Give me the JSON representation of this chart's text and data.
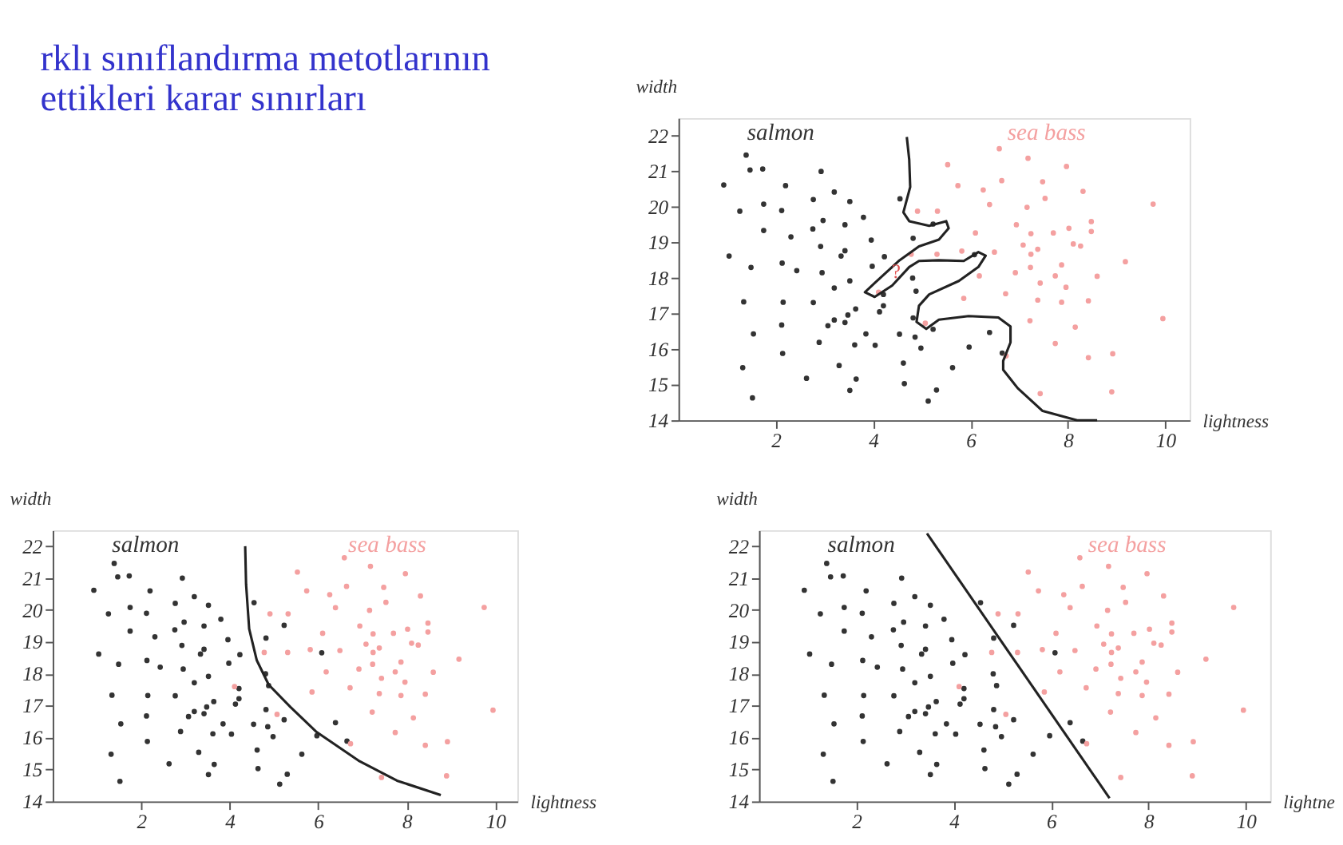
{
  "chart_data": [
    {
      "type": "other",
      "title": "rklı sınıflandırma metotlarının\nettikleri karar sınırları"
    },
    {
      "type": "scatter",
      "xlabel": "lightness",
      "ylabel": "width",
      "xlim": [
        0,
        10.5
      ],
      "ylim": [
        14,
        22.5
      ],
      "xticks": [
        2,
        4,
        6,
        8,
        10
      ],
      "yticks": [
        14,
        15,
        16,
        17,
        18,
        19,
        20,
        21,
        22
      ],
      "marker": "circle",
      "annotations": [
        {
          "text": "?",
          "x": 4.47,
          "y": 18.18
        }
      ],
      "series": [
        {
          "name": "salmon",
          "color": "#333333",
          "x": [
            0.93,
            1.39,
            1.47,
            1.73,
            1.26,
            1.75,
            1.75,
            1.04,
            1.49,
            1.34,
            1.54,
            1.32,
            1.52,
            2.2,
            2.12,
            2.31,
            2.13,
            2.43,
            2.15,
            2.12,
            2.14,
            2.93,
            2.77,
            2.97,
            2.76,
            2.92,
            2.95,
            2.77,
            2.89,
            2.63,
            3.2,
            3.52,
            3.42,
            3.42,
            3.34,
            3.2,
            3.52,
            3.07,
            3.2,
            3.48,
            3.42,
            3.64,
            3.62,
            3.3,
            3.65,
            3.52,
            3.8,
            3.96,
            3.98,
            4.23,
            4.21,
            4.21,
            4.13,
            3.85,
            4.04,
            4.55,
            4.82,
            4.81,
            4.88,
            4.82,
            4.86,
            4.54,
            4.98,
            4.62,
            4.64,
            5.23,
            5.23,
            5.3,
            5.13,
            5.63,
            5.97,
            6.08,
            6.39,
            6.65
          ],
          "values": [
            20.62,
            21.46,
            21.04,
            21.07,
            19.88,
            20.08,
            19.34,
            18.62,
            18.3,
            17.33,
            16.43,
            15.48,
            14.63,
            20.6,
            19.9,
            19.16,
            18.42,
            18.21,
            17.32,
            16.68,
            15.88,
            21.0,
            20.21,
            19.62,
            19.38,
            18.89,
            18.15,
            17.31,
            16.19,
            15.18,
            20.42,
            20.15,
            19.5,
            18.77,
            18.62,
            17.72,
            17.92,
            16.66,
            16.82,
            16.96,
            16.75,
            17.13,
            16.12,
            15.54,
            15.16,
            14.84,
            19.71,
            19.07,
            18.33,
            18.6,
            17.54,
            17.22,
            17.05,
            16.43,
            16.11,
            20.23,
            19.12,
            18.0,
            17.63,
            16.88,
            16.34,
            16.42,
            16.03,
            15.61,
            15.03,
            19.52,
            16.56,
            14.85,
            14.54,
            15.48,
            16.06,
            18.66,
            16.47,
            15.89
          ]
        },
        {
          "name": "sea bass",
          "color": "#f4a0a0",
          "x": [
            6.59,
            5.53,
            7.18,
            7.97,
            5.74,
            6.26,
            6.64,
            7.48,
            8.31,
            7.53,
            6.39,
            4.91,
            5.32,
            7.16,
            9.75,
            6.94,
            8.02,
            8.48,
            8.48,
            7.24,
            7.7,
            6.1,
            7.08,
            7.38,
            8.11,
            8.26,
            7.24,
            6.49,
            5.82,
            4.78,
            5.31,
            7.87,
            7.23,
            9.18,
            6.92,
            8.6,
            6.18,
            7.74,
            7.43,
            7.96,
            6.72,
            5.86,
            7.38,
            8.42,
            7.87,
            4.11,
            7.22,
            8.15,
            9.95,
            5.07,
            6.73,
            7.74,
            8.42,
            8.92,
            7.43,
            8.9
          ],
          "values": [
            21.64,
            21.19,
            21.37,
            21.14,
            20.6,
            20.48,
            20.74,
            20.71,
            20.44,
            20.24,
            20.07,
            19.88,
            19.88,
            19.99,
            20.08,
            19.5,
            19.4,
            19.59,
            19.31,
            19.25,
            19.27,
            19.27,
            18.93,
            18.81,
            18.96,
            18.9,
            18.67,
            18.73,
            18.76,
            18.67,
            18.67,
            18.37,
            18.3,
            18.46,
            18.15,
            18.05,
            18.06,
            18.06,
            17.86,
            17.74,
            17.56,
            17.43,
            17.38,
            17.36,
            17.32,
            17.6,
            16.8,
            16.62,
            16.86,
            16.73,
            15.81,
            16.16,
            15.76,
            15.87,
            14.75,
            14.8
          ]
        },
        {
          "type": "line",
          "color": "#222222",
          "marker": "none",
          "x": [
            4.69,
            4.74,
            4.76,
            4.62,
            4.74,
            5.15,
            5.5,
            5.55,
            5.35,
            4.94,
            4.54,
            4.03,
            3.83,
            4.03,
            4.39,
            4.74,
            4.94,
            5.35,
            5.86,
            6.16,
            6.31,
            6.16,
            5.76,
            5.15,
            4.94,
            4.89,
            5.09,
            5.35,
            5.96,
            6.57,
            6.82,
            6.82,
            6.67,
            6.67,
            6.97,
            7.48,
            8.19,
            8.6
          ],
          "values": [
            21.97,
            21.33,
            20.56,
            19.85,
            19.6,
            19.47,
            19.6,
            19.4,
            19.08,
            18.89,
            18.5,
            17.86,
            17.6,
            17.47,
            17.79,
            18.31,
            18.48,
            18.5,
            18.48,
            18.73,
            18.63,
            18.31,
            17.92,
            17.54,
            17.22,
            16.77,
            16.57,
            16.83,
            16.93,
            16.89,
            16.64,
            16.19,
            15.67,
            15.42,
            14.9,
            14.26,
            14.0,
            14.0
          ]
        }
      ]
    },
    {
      "type": "scatter",
      "xlabel": "lightness",
      "ylabel": "width",
      "xlim": [
        0,
        10.5
      ],
      "ylim": [
        14,
        22.5
      ],
      "xticks": [
        2,
        4,
        6,
        8,
        10
      ],
      "yticks": [
        14,
        15,
        16,
        17,
        18,
        19,
        20,
        21,
        22
      ],
      "marker": "circle",
      "series": [
        {
          "name": "salmon",
          "color": "#333333",
          "x": [
            0.93,
            1.39,
            1.47,
            1.73,
            1.26,
            1.75,
            1.75,
            1.04,
            1.49,
            1.34,
            1.54,
            1.32,
            1.52,
            2.2,
            2.12,
            2.31,
            2.13,
            2.43,
            2.15,
            2.12,
            2.14,
            2.93,
            2.77,
            2.97,
            2.76,
            2.92,
            2.95,
            2.77,
            2.89,
            2.63,
            3.2,
            3.52,
            3.42,
            3.42,
            3.34,
            3.2,
            3.52,
            3.07,
            3.2,
            3.48,
            3.42,
            3.64,
            3.62,
            3.3,
            3.65,
            3.52,
            3.8,
            3.96,
            3.98,
            4.23,
            4.21,
            4.21,
            4.13,
            3.85,
            4.04,
            4.55,
            4.82,
            4.81,
            4.88,
            4.82,
            4.86,
            4.54,
            4.98,
            4.62,
            4.64,
            5.23,
            5.23,
            5.3,
            5.13,
            5.63,
            5.97,
            6.08,
            6.39,
            6.65
          ],
          "values": [
            20.62,
            21.46,
            21.04,
            21.07,
            19.88,
            20.08,
            19.34,
            18.62,
            18.3,
            17.33,
            16.43,
            15.48,
            14.63,
            20.6,
            19.9,
            19.16,
            18.42,
            18.21,
            17.32,
            16.68,
            15.88,
            21.0,
            20.21,
            19.62,
            19.38,
            18.89,
            18.15,
            17.31,
            16.19,
            15.18,
            20.42,
            20.15,
            19.5,
            18.77,
            18.62,
            17.72,
            17.92,
            16.66,
            16.82,
            16.96,
            16.75,
            17.13,
            16.12,
            15.54,
            15.16,
            14.84,
            19.71,
            19.07,
            18.33,
            18.6,
            17.54,
            17.22,
            17.05,
            16.43,
            16.11,
            20.23,
            19.12,
            18.0,
            17.63,
            16.88,
            16.34,
            16.42,
            16.03,
            15.61,
            15.03,
            19.52,
            16.56,
            14.85,
            14.54,
            15.48,
            16.06,
            18.66,
            16.47,
            15.89
          ]
        },
        {
          "name": "sea bass",
          "color": "#f4a0a0",
          "x": [
            6.59,
            5.53,
            7.18,
            7.97,
            5.74,
            6.26,
            6.64,
            7.48,
            8.31,
            7.53,
            6.39,
            4.91,
            5.32,
            7.16,
            9.75,
            6.94,
            8.02,
            8.48,
            8.48,
            7.24,
            7.7,
            6.1,
            7.08,
            7.38,
            8.11,
            8.26,
            7.24,
            6.49,
            5.82,
            4.78,
            5.31,
            7.87,
            7.23,
            9.18,
            6.92,
            8.6,
            6.18,
            7.74,
            7.43,
            7.96,
            6.72,
            5.86,
            7.38,
            8.42,
            7.87,
            4.11,
            7.22,
            8.15,
            9.95,
            5.07,
            6.73,
            7.74,
            8.42,
            8.92,
            7.43,
            8.9
          ],
          "values": [
            21.64,
            21.19,
            21.37,
            21.14,
            20.6,
            20.48,
            20.74,
            20.71,
            20.44,
            20.24,
            20.07,
            19.88,
            19.88,
            19.99,
            20.08,
            19.5,
            19.4,
            19.59,
            19.31,
            19.25,
            19.27,
            19.27,
            18.93,
            18.81,
            18.96,
            18.9,
            18.67,
            18.73,
            18.76,
            18.67,
            18.67,
            18.37,
            18.3,
            18.46,
            18.15,
            18.05,
            18.06,
            18.06,
            17.86,
            17.74,
            17.56,
            17.43,
            17.38,
            17.36,
            17.32,
            17.6,
            16.8,
            16.62,
            16.86,
            16.73,
            15.81,
            16.16,
            15.76,
            15.87,
            14.75,
            14.8
          ]
        },
        {
          "type": "line",
          "color": "#222222",
          "marker": "none",
          "x": [
            4.35,
            4.37,
            4.44,
            4.61,
            4.88,
            5.37,
            5.95,
            6.91,
            7.78,
            8.77
          ],
          "values": [
            22.0,
            20.81,
            19.41,
            18.43,
            17.66,
            16.96,
            16.19,
            15.28,
            14.65,
            14.2
          ]
        }
      ]
    },
    {
      "type": "scatter",
      "xlabel": "lightne",
      "ylabel": "width",
      "xlim": [
        0,
        10.5
      ],
      "ylim": [
        14,
        22.5
      ],
      "xticks": [
        2,
        4,
        6,
        8,
        10
      ],
      "yticks": [
        14,
        15,
        16,
        17,
        18,
        19,
        20,
        21,
        22
      ],
      "marker": "circle",
      "series": [
        {
          "name": "salmon",
          "color": "#333333",
          "x": [
            0.93,
            1.39,
            1.47,
            1.73,
            1.26,
            1.75,
            1.75,
            1.04,
            1.49,
            1.34,
            1.54,
            1.32,
            1.52,
            2.2,
            2.12,
            2.31,
            2.13,
            2.43,
            2.15,
            2.12,
            2.14,
            2.93,
            2.77,
            2.97,
            2.76,
            2.92,
            2.95,
            2.77,
            2.89,
            2.63,
            3.2,
            3.52,
            3.42,
            3.42,
            3.34,
            3.2,
            3.52,
            3.07,
            3.2,
            3.48,
            3.42,
            3.64,
            3.62,
            3.3,
            3.65,
            3.52,
            3.8,
            3.96,
            3.98,
            4.23,
            4.21,
            4.21,
            4.13,
            3.85,
            4.04,
            4.55,
            4.82,
            4.81,
            4.88,
            4.82,
            4.86,
            4.54,
            4.98,
            4.62,
            4.64,
            5.23,
            5.23,
            5.3,
            5.13,
            5.63,
            5.97,
            6.08,
            6.39,
            6.65
          ],
          "values": [
            20.62,
            21.46,
            21.04,
            21.07,
            19.88,
            20.08,
            19.34,
            18.62,
            18.3,
            17.33,
            16.43,
            15.48,
            14.63,
            20.6,
            19.9,
            19.16,
            18.42,
            18.21,
            17.32,
            16.68,
            15.88,
            21.0,
            20.21,
            19.62,
            19.38,
            18.89,
            18.15,
            17.31,
            16.19,
            15.18,
            20.42,
            20.15,
            19.5,
            18.77,
            18.62,
            17.72,
            17.92,
            16.66,
            16.82,
            16.96,
            16.75,
            17.13,
            16.12,
            15.54,
            15.16,
            14.84,
            19.71,
            19.07,
            18.33,
            18.6,
            17.54,
            17.22,
            17.05,
            16.43,
            16.11,
            20.23,
            19.12,
            18.0,
            17.63,
            16.88,
            16.34,
            16.42,
            16.03,
            15.61,
            15.03,
            19.52,
            16.56,
            14.85,
            14.54,
            15.48,
            16.06,
            18.66,
            16.47,
            15.89
          ]
        },
        {
          "name": "sea bass",
          "color": "#f4a0a0",
          "x": [
            6.59,
            5.53,
            7.18,
            7.97,
            5.74,
            6.26,
            6.64,
            7.48,
            8.31,
            7.53,
            6.39,
            4.91,
            5.32,
            7.16,
            9.75,
            6.94,
            8.02,
            8.48,
            8.48,
            7.24,
            7.7,
            6.1,
            7.08,
            7.38,
            8.11,
            8.26,
            7.24,
            6.49,
            5.82,
            4.78,
            5.31,
            7.87,
            7.23,
            9.18,
            6.92,
            8.6,
            6.18,
            7.74,
            7.43,
            7.96,
            6.72,
            5.86,
            7.38,
            8.42,
            7.87,
            4.11,
            7.22,
            8.15,
            9.95,
            5.07,
            6.73,
            7.74,
            8.42,
            8.92,
            7.43,
            8.9
          ],
          "values": [
            21.64,
            21.19,
            21.37,
            21.14,
            20.6,
            20.48,
            20.74,
            20.71,
            20.44,
            20.24,
            20.07,
            19.88,
            19.88,
            19.99,
            20.08,
            19.5,
            19.4,
            19.59,
            19.31,
            19.25,
            19.27,
            19.27,
            18.93,
            18.81,
            18.96,
            18.9,
            18.67,
            18.73,
            18.76,
            18.67,
            18.67,
            18.37,
            18.3,
            18.46,
            18.15,
            18.05,
            18.06,
            18.06,
            17.86,
            17.74,
            17.56,
            17.43,
            17.38,
            17.36,
            17.32,
            17.6,
            16.8,
            16.62,
            16.86,
            16.73,
            15.81,
            16.16,
            15.76,
            15.87,
            14.75,
            14.8
          ]
        },
        {
          "type": "line",
          "color": "#222222",
          "marker": "none",
          "x": [
            3.45,
            7.2
          ],
          "values": [
            22.4,
            14.1
          ]
        }
      ]
    }
  ]
}
